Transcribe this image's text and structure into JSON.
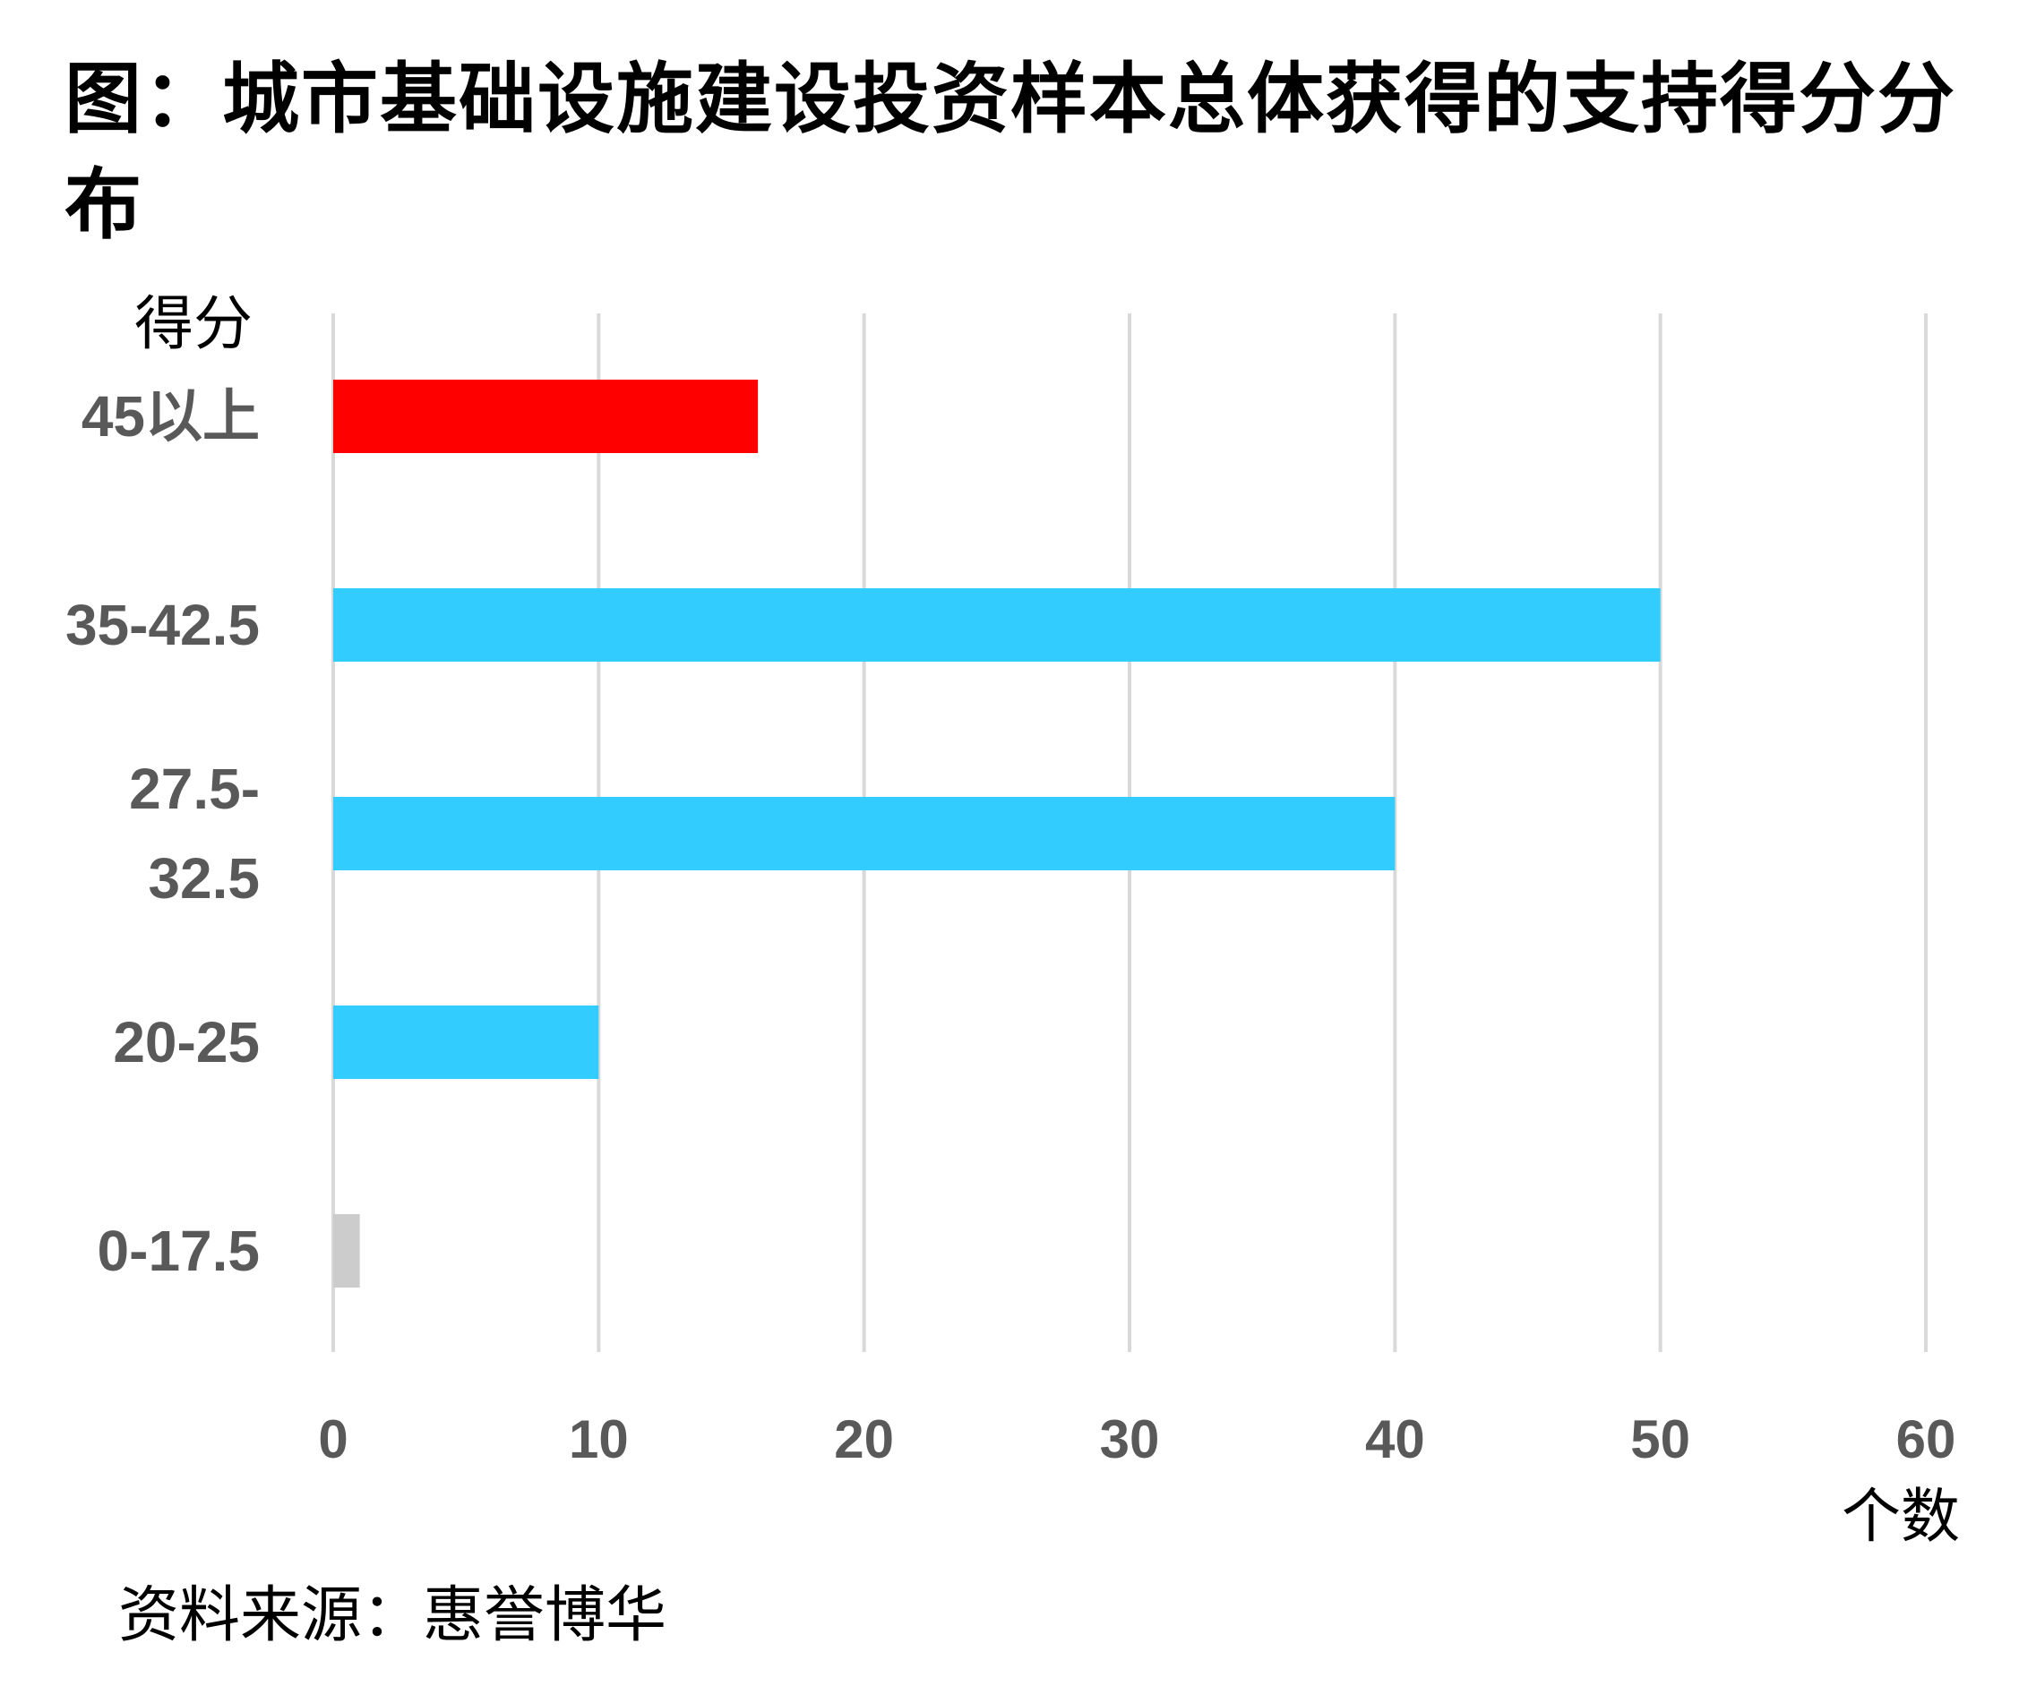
{
  "chart_data": {
    "type": "bar",
    "orientation": "horizontal",
    "title": "图：城市基础设施建设投资样本总体获得的支持得分分布",
    "ylabel": "得分",
    "xlabel": "个数",
    "categories": [
      "45以上",
      "35-42.5",
      "27.5-32.5",
      "20-25",
      "0-17.5"
    ],
    "category_lines": [
      [
        "45以上"
      ],
      [
        "35-42.5"
      ],
      [
        "27.5-",
        "32.5"
      ],
      [
        "20-25"
      ],
      [
        "0-17.5"
      ]
    ],
    "values": [
      16,
      50,
      40,
      10,
      1
    ],
    "bar_colors": [
      "#FF0000",
      "#33CCFF",
      "#33CCFF",
      "#33CCFF",
      "#CCCCCC"
    ],
    "xlim": [
      0,
      60
    ],
    "xticks": [
      0,
      10,
      20,
      30,
      40,
      50,
      60
    ],
    "grid": "vertical",
    "legend": "none",
    "source": "资料来源：惠誉博华"
  }
}
